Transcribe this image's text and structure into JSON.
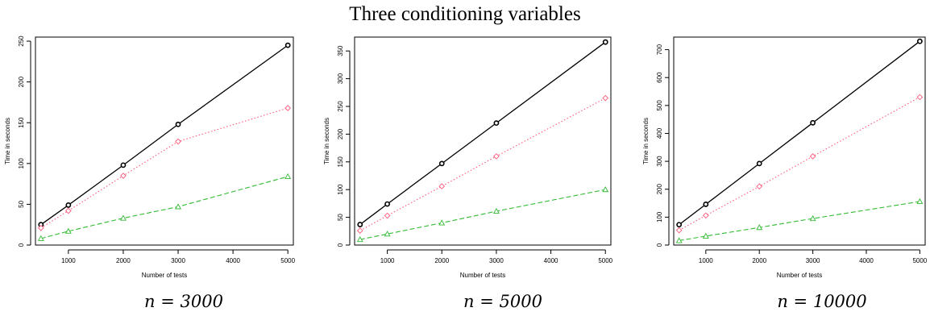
{
  "title": "Three conditioning variables",
  "chart_data": [
    {
      "type": "line",
      "caption": "n = 3000",
      "xlabel": "Number of tests",
      "ylabel": "Time in seconds",
      "x": [
        500,
        1000,
        2000,
        3000,
        5000
      ],
      "xticks": [
        1000,
        2000,
        3000,
        4000,
        5000
      ],
      "yticks": [
        0,
        50,
        100,
        150,
        200,
        250
      ],
      "xlim": [
        400,
        5100
      ],
      "ylim": [
        0,
        255
      ],
      "grid": false,
      "series": [
        {
          "values": [
            25,
            49,
            98,
            148,
            245
          ],
          "color": "#000000",
          "dash": "solid",
          "marker": "circle"
        },
        {
          "values": [
            21,
            42,
            85,
            127,
            168
          ],
          "color": "#ff5a7a",
          "dash": "dotted",
          "marker": "diamond"
        },
        {
          "values": [
            8,
            17,
            33,
            47,
            84
          ],
          "color": "#33bb33",
          "dash": "dashed",
          "marker": "triangle"
        }
      ]
    },
    {
      "type": "line",
      "caption": "n = 5000",
      "xlabel": "Number of tests",
      "ylabel": "Time in seconds",
      "x": [
        500,
        1000,
        2000,
        3000,
        5000
      ],
      "xticks": [
        1000,
        2000,
        3000,
        4000,
        5000
      ],
      "yticks": [
        0,
        50,
        100,
        150,
        200,
        250,
        300,
        350
      ],
      "xlim": [
        400,
        5100
      ],
      "ylim": [
        0,
        375
      ],
      "grid": false,
      "series": [
        {
          "values": [
            37,
            74,
            147,
            220,
            366
          ],
          "color": "#000000",
          "dash": "solid",
          "marker": "circle"
        },
        {
          "values": [
            26,
            53,
            106,
            160,
            265
          ],
          "color": "#ff5a7a",
          "dash": "dotted",
          "marker": "diamond"
        },
        {
          "values": [
            10,
            20,
            40,
            61,
            100
          ],
          "color": "#33bb33",
          "dash": "dashed",
          "marker": "triangle"
        }
      ]
    },
    {
      "type": "line",
      "caption": "n = 10000",
      "xlabel": "Number of tests",
      "ylabel": "Time in seconds",
      "x": [
        500,
        1000,
        2000,
        3000,
        5000
      ],
      "xticks": [
        1000,
        2000,
        3000,
        4000,
        5000
      ],
      "yticks": [
        0,
        100,
        200,
        300,
        400,
        500,
        600,
        700
      ],
      "xlim": [
        400,
        5100
      ],
      "ylim": [
        0,
        745
      ],
      "grid": false,
      "series": [
        {
          "values": [
            73,
            146,
            292,
            438,
            730
          ],
          "color": "#000000",
          "dash": "solid",
          "marker": "circle"
        },
        {
          "values": [
            53,
            106,
            210,
            318,
            530
          ],
          "color": "#ff5a7a",
          "dash": "dotted",
          "marker": "diamond"
        },
        {
          "values": [
            16,
            32,
            63,
            95,
            156
          ],
          "color": "#33bb33",
          "dash": "dashed",
          "marker": "triangle"
        }
      ]
    }
  ]
}
